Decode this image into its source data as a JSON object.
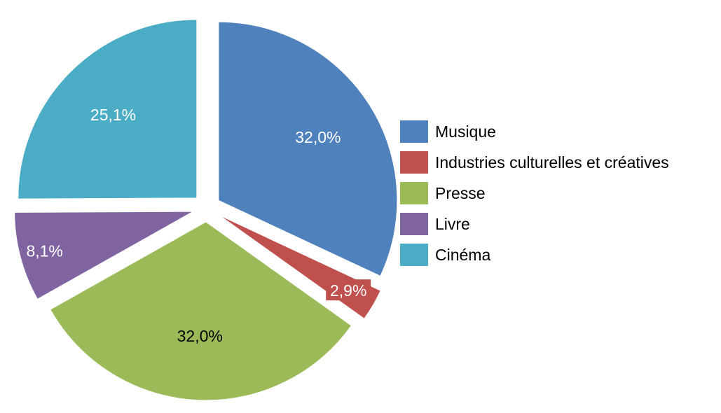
{
  "chart_data": {
    "type": "pie",
    "title": "",
    "categories": [
      "Musique",
      "Industries culturelles et créatives",
      "Presse",
      "Livre",
      "Cinéma"
    ],
    "values": [
      32.0,
      2.9,
      32.0,
      8.1,
      25.1
    ],
    "labels": [
      "32,0%",
      "2,9%",
      "32,0%",
      "8,1%",
      "25,1%"
    ],
    "colors": [
      "#4F81BD",
      "#C0504D",
      "#9BBB59",
      "#8064A2",
      "#4BACC6"
    ],
    "label_colors": [
      "#ffffff",
      "#ffffff",
      "#000000",
      "#ffffff",
      "#ffffff"
    ],
    "exploded": true,
    "start_angle_deg": 0,
    "direction": "clockwise",
    "legend_position": "right"
  }
}
